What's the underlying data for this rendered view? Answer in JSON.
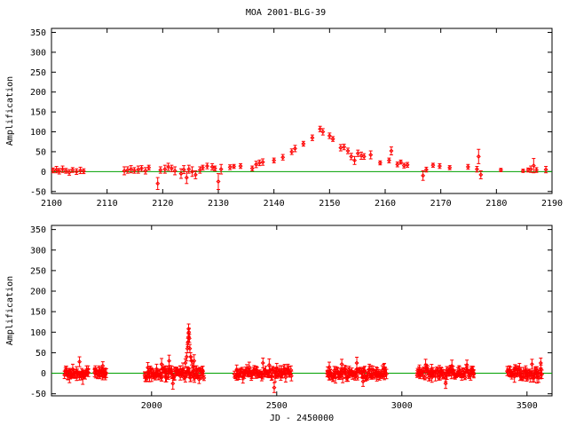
{
  "title": "MOA 2001-BLG-39",
  "colors": {
    "data": "#ff0000",
    "baseline": "#00a000",
    "axis": "#000000",
    "background": "#ffffff"
  },
  "chart_data": [
    {
      "type": "scatter",
      "panel": "top",
      "title": "MOA 2001-BLG-39",
      "xlabel": "",
      "ylabel": "Amplification",
      "xlim": [
        2100,
        2190
      ],
      "ylim": [
        -55,
        360
      ],
      "xticks": [
        2100,
        2110,
        2120,
        2130,
        2140,
        2150,
        2160,
        2170,
        2180,
        2190
      ],
      "yticks": [
        -50,
        0,
        50,
        100,
        150,
        200,
        250,
        300,
        350
      ],
      "baseline": 0,
      "grid": false,
      "legend": "none",
      "series": [
        {
          "error_bars": true,
          "points": [
            [
              2100.3,
              3,
              6
            ],
            [
              2100.9,
              5,
              8
            ],
            [
              2101.4,
              1,
              7
            ],
            [
              2102.0,
              6,
              8
            ],
            [
              2102.6,
              2,
              6
            ],
            [
              2103.2,
              -2,
              7
            ],
            [
              2103.8,
              4,
              6
            ],
            [
              2104.5,
              0,
              7
            ],
            [
              2105.2,
              3,
              8
            ],
            [
              2105.8,
              1,
              6
            ],
            [
              2113.1,
              2,
              10
            ],
            [
              2113.7,
              4,
              8
            ],
            [
              2114.3,
              6,
              9
            ],
            [
              2114.9,
              3,
              7
            ],
            [
              2115.6,
              5,
              9
            ],
            [
              2116.2,
              8,
              7
            ],
            [
              2116.9,
              2,
              8
            ],
            [
              2117.5,
              10,
              6
            ],
            [
              2119.1,
              -30,
              15
            ],
            [
              2119.6,
              4,
              8
            ],
            [
              2120.4,
              6,
              10
            ],
            [
              2121.0,
              12,
              9
            ],
            [
              2121.6,
              8,
              8
            ],
            [
              2122.2,
              2,
              10
            ],
            [
              2123.3,
              -5,
              12
            ],
            [
              2123.8,
              5,
              10
            ],
            [
              2124.3,
              -15,
              15
            ],
            [
              2124.7,
              6,
              10
            ],
            [
              2125.3,
              0,
              12
            ],
            [
              2125.9,
              -8,
              10
            ],
            [
              2126.7,
              4,
              8
            ],
            [
              2127.2,
              10,
              6
            ],
            [
              2128.0,
              14,
              7
            ],
            [
              2128.9,
              12,
              8
            ],
            [
              2129.4,
              8,
              6
            ],
            [
              2130.0,
              -25,
              20
            ],
            [
              2130.5,
              6,
              12
            ],
            [
              2132.1,
              11,
              6
            ],
            [
              2132.8,
              13,
              5
            ],
            [
              2134.0,
              14,
              6
            ],
            [
              2136.1,
              8,
              6
            ],
            [
              2136.8,
              18,
              8
            ],
            [
              2137.4,
              22,
              7
            ],
            [
              2138.0,
              24,
              8
            ],
            [
              2140.0,
              28,
              6
            ],
            [
              2141.6,
              36,
              7
            ],
            [
              2143.2,
              50,
              7
            ],
            [
              2143.8,
              58,
              8
            ],
            [
              2145.3,
              70,
              6
            ],
            [
              2146.9,
              85,
              7
            ],
            [
              2148.3,
              107,
              7
            ],
            [
              2148.8,
              100,
              8
            ],
            [
              2150.0,
              90,
              7
            ],
            [
              2150.6,
              82,
              6
            ],
            [
              2152.0,
              60,
              8
            ],
            [
              2152.6,
              62,
              7
            ],
            [
              2153.3,
              52,
              7
            ],
            [
              2153.9,
              38,
              8
            ],
            [
              2154.5,
              28,
              10
            ],
            [
              2155.1,
              46,
              8
            ],
            [
              2155.7,
              40,
              9
            ],
            [
              2156.2,
              38,
              7
            ],
            [
              2157.4,
              42,
              10
            ],
            [
              2159.1,
              22,
              5
            ],
            [
              2160.7,
              28,
              6
            ],
            [
              2161.1,
              52,
              10
            ],
            [
              2162.2,
              18,
              6
            ],
            [
              2162.8,
              24,
              5
            ],
            [
              2163.4,
              15,
              6
            ],
            [
              2164.0,
              17,
              6
            ],
            [
              2166.8,
              -10,
              12
            ],
            [
              2167.4,
              5,
              6
            ],
            [
              2168.6,
              16,
              5
            ],
            [
              2169.8,
              14,
              6
            ],
            [
              2171.6,
              10,
              5
            ],
            [
              2174.9,
              12,
              6
            ],
            [
              2176.5,
              6,
              7
            ],
            [
              2176.8,
              38,
              18
            ],
            [
              2177.2,
              -8,
              10
            ],
            [
              2180.8,
              4,
              4
            ],
            [
              2184.8,
              2,
              4
            ],
            [
              2185.7,
              4,
              5
            ],
            [
              2186.2,
              6,
              8
            ],
            [
              2186.7,
              15,
              18
            ],
            [
              2187.2,
              4,
              6
            ],
            [
              2188.9,
              5,
              8
            ]
          ]
        }
      ]
    },
    {
      "type": "scatter",
      "panel": "bottom",
      "title": "",
      "xlabel": "JD - 2450000",
      "ylabel": "Amplification",
      "xlim": [
        1600,
        3600
      ],
      "ylim": [
        -55,
        360
      ],
      "xticks": [
        2000,
        2500,
        3000,
        3500
      ],
      "yticks": [
        -50,
        0,
        50,
        100,
        150,
        200,
        250,
        300,
        350
      ],
      "baseline": 0,
      "grid": false,
      "legend": "none",
      "seasons": [
        {
          "start": 1650,
          "end": 1750,
          "spread": 10
        },
        {
          "start": 1770,
          "end": 1820,
          "spread": 10
        },
        {
          "start": 1970,
          "end": 2210,
          "spread": 12
        },
        {
          "start": 2330,
          "end": 2560,
          "spread": 10
        },
        {
          "start": 2700,
          "end": 2940,
          "spread": 12
        },
        {
          "start": 3060,
          "end": 3290,
          "spread": 12
        },
        {
          "start": 3420,
          "end": 3560,
          "spread": 12
        }
      ],
      "series": [
        {
          "error_bars": true,
          "points": [
            [
              1660,
              5,
              12
            ],
            [
              1672,
              -8,
              15
            ],
            [
              1685,
              10,
              12
            ],
            [
              1700,
              2,
              14
            ],
            [
              1712,
              28,
              12
            ],
            [
              1725,
              -12,
              15
            ],
            [
              1740,
              6,
              12
            ],
            [
              1775,
              8,
              10
            ],
            [
              1790,
              2,
              12
            ],
            [
              1805,
              18,
              10
            ],
            [
              1815,
              -4,
              12
            ],
            [
              1985,
              14,
              12
            ],
            [
              2000,
              -6,
              14
            ],
            [
              2020,
              10,
              12
            ],
            [
              2040,
              22,
              14
            ],
            [
              2055,
              6,
              12
            ],
            [
              2070,
              30,
              14
            ],
            [
              2085,
              -25,
              14
            ],
            [
              2100,
              5,
              8
            ],
            [
              2115,
              8,
              10
            ],
            [
              2125,
              10,
              15
            ],
            [
              2135,
              25,
              10
            ],
            [
              2140,
              40,
              10
            ],
            [
              2143,
              60,
              10
            ],
            [
              2145,
              75,
              10
            ],
            [
              2147,
              88,
              10
            ],
            [
              2148,
              108,
              12
            ],
            [
              2149,
              100,
              10
            ],
            [
              2151,
              85,
              10
            ],
            [
              2153,
              60,
              10
            ],
            [
              2156,
              40,
              10
            ],
            [
              2160,
              30,
              10
            ],
            [
              2165,
              15,
              10
            ],
            [
              2170,
              30,
              15
            ],
            [
              2180,
              8,
              10
            ],
            [
              2190,
              -15,
              10
            ],
            [
              2205,
              5,
              12
            ],
            [
              2340,
              8,
              12
            ],
            [
              2365,
              -10,
              14
            ],
            [
              2390,
              15,
              12
            ],
            [
              2420,
              2,
              14
            ],
            [
              2445,
              25,
              12
            ],
            [
              2470,
              20,
              15
            ],
            [
              2490,
              -35,
              12
            ],
            [
              2500,
              12,
              12
            ],
            [
              2520,
              4,
              14
            ],
            [
              2545,
              10,
              12
            ],
            [
              2710,
              15,
              12
            ],
            [
              2735,
              -10,
              14
            ],
            [
              2760,
              22,
              12
            ],
            [
              2790,
              3,
              14
            ],
            [
              2820,
              25,
              14
            ],
            [
              2845,
              -20,
              12
            ],
            [
              2870,
              10,
              12
            ],
            [
              2900,
              -5,
              14
            ],
            [
              2930,
              12,
              12
            ],
            [
              3070,
              8,
              12
            ],
            [
              3095,
              20,
              14
            ],
            [
              3120,
              -10,
              12
            ],
            [
              3150,
              5,
              14
            ],
            [
              3175,
              -25,
              12
            ],
            [
              3200,
              18,
              14
            ],
            [
              3230,
              4,
              12
            ],
            [
              3260,
              20,
              12
            ],
            [
              3285,
              6,
              10
            ],
            [
              3430,
              6,
              12
            ],
            [
              3450,
              -8,
              14
            ],
            [
              3470,
              12,
              12
            ],
            [
              3495,
              4,
              14
            ],
            [
              3520,
              22,
              12
            ],
            [
              3540,
              -10,
              14
            ],
            [
              3555,
              25,
              12
            ]
          ]
        }
      ]
    }
  ]
}
